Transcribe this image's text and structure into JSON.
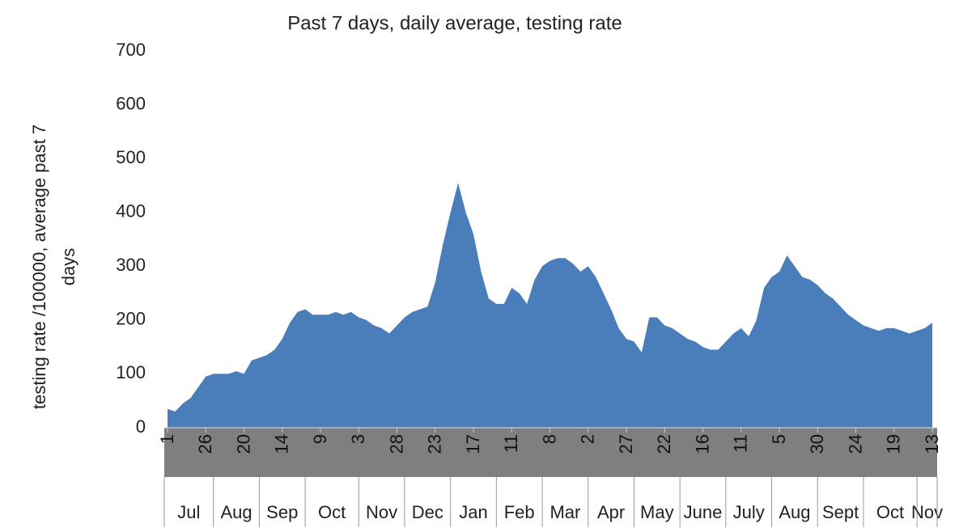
{
  "chart_data": {
    "type": "area",
    "title": "Past 7 days, daily average, testing rate",
    "ylabel": [
      "testing rate /100000, average past 7",
      "days"
    ],
    "color": "#4a7ebb",
    "ylim": [
      0,
      700
    ],
    "yticks": [
      0,
      100,
      200,
      300,
      400,
      500,
      600,
      700
    ],
    "categories": [
      "1",
      null,
      null,
      null,
      null,
      "26",
      null,
      null,
      null,
      null,
      "20",
      null,
      null,
      null,
      null,
      "14",
      null,
      null,
      null,
      null,
      "9",
      null,
      null,
      null,
      null,
      "3",
      null,
      null,
      null,
      null,
      "28",
      null,
      null,
      null,
      null,
      "23",
      null,
      null,
      null,
      null,
      "17",
      null,
      null,
      null,
      null,
      "11",
      null,
      null,
      null,
      null,
      "8",
      null,
      null,
      null,
      null,
      "2",
      null,
      null,
      null,
      null,
      "27",
      null,
      null,
      null,
      null,
      "22",
      null,
      null,
      null,
      null,
      "16",
      null,
      null,
      null,
      null,
      "11",
      null,
      null,
      null,
      null,
      "5",
      null,
      null,
      null,
      null,
      "30",
      null,
      null,
      null,
      null,
      "24",
      null,
      null,
      null,
      null,
      "19",
      null,
      null,
      null,
      null,
      "13"
    ],
    "months": [
      "Jul",
      null,
      null,
      null,
      null,
      null,
      "Aug",
      null,
      null,
      null,
      null,
      null,
      "Sep",
      null,
      null,
      null,
      null,
      null,
      "Oct",
      null,
      null,
      null,
      null,
      null,
      null,
      "Nov",
      null,
      null,
      null,
      null,
      null,
      "Dec",
      null,
      null,
      null,
      null,
      null,
      "Jan",
      null,
      null,
      null,
      null,
      null,
      "Feb",
      null,
      null,
      null,
      null,
      null,
      "Mar",
      null,
      null,
      null,
      null,
      null,
      "Apr",
      null,
      null,
      null,
      null,
      null,
      "May",
      null,
      null,
      null,
      null,
      null,
      "June",
      null,
      null,
      null,
      null,
      null,
      "July",
      null,
      null,
      null,
      null,
      null,
      "Aug",
      null,
      null,
      null,
      null,
      null,
      "Sept",
      null,
      null,
      null,
      null,
      null,
      "Oct",
      null,
      null,
      null,
      null,
      null,
      null,
      "Nov",
      null,
      null
    ],
    "values": [
      35,
      30,
      45,
      55,
      75,
      95,
      100,
      100,
      100,
      105,
      100,
      125,
      130,
      135,
      145,
      165,
      195,
      215,
      220,
      210,
      210,
      210,
      215,
      210,
      215,
      205,
      200,
      190,
      185,
      175,
      190,
      205,
      215,
      220,
      225,
      270,
      340,
      400,
      455,
      400,
      360,
      290,
      240,
      230,
      230,
      260,
      250,
      230,
      275,
      300,
      310,
      315,
      315,
      305,
      290,
      300,
      280,
      250,
      220,
      185,
      165,
      160,
      140,
      205,
      205,
      190,
      185,
      175,
      165,
      160,
      150,
      145,
      145,
      160,
      175,
      185,
      170,
      200,
      260,
      280,
      290,
      320,
      300,
      280,
      275,
      265,
      250,
      240,
      225,
      210,
      200,
      190,
      185,
      180,
      185,
      185,
      180,
      175,
      180,
      185,
      195
    ]
  }
}
